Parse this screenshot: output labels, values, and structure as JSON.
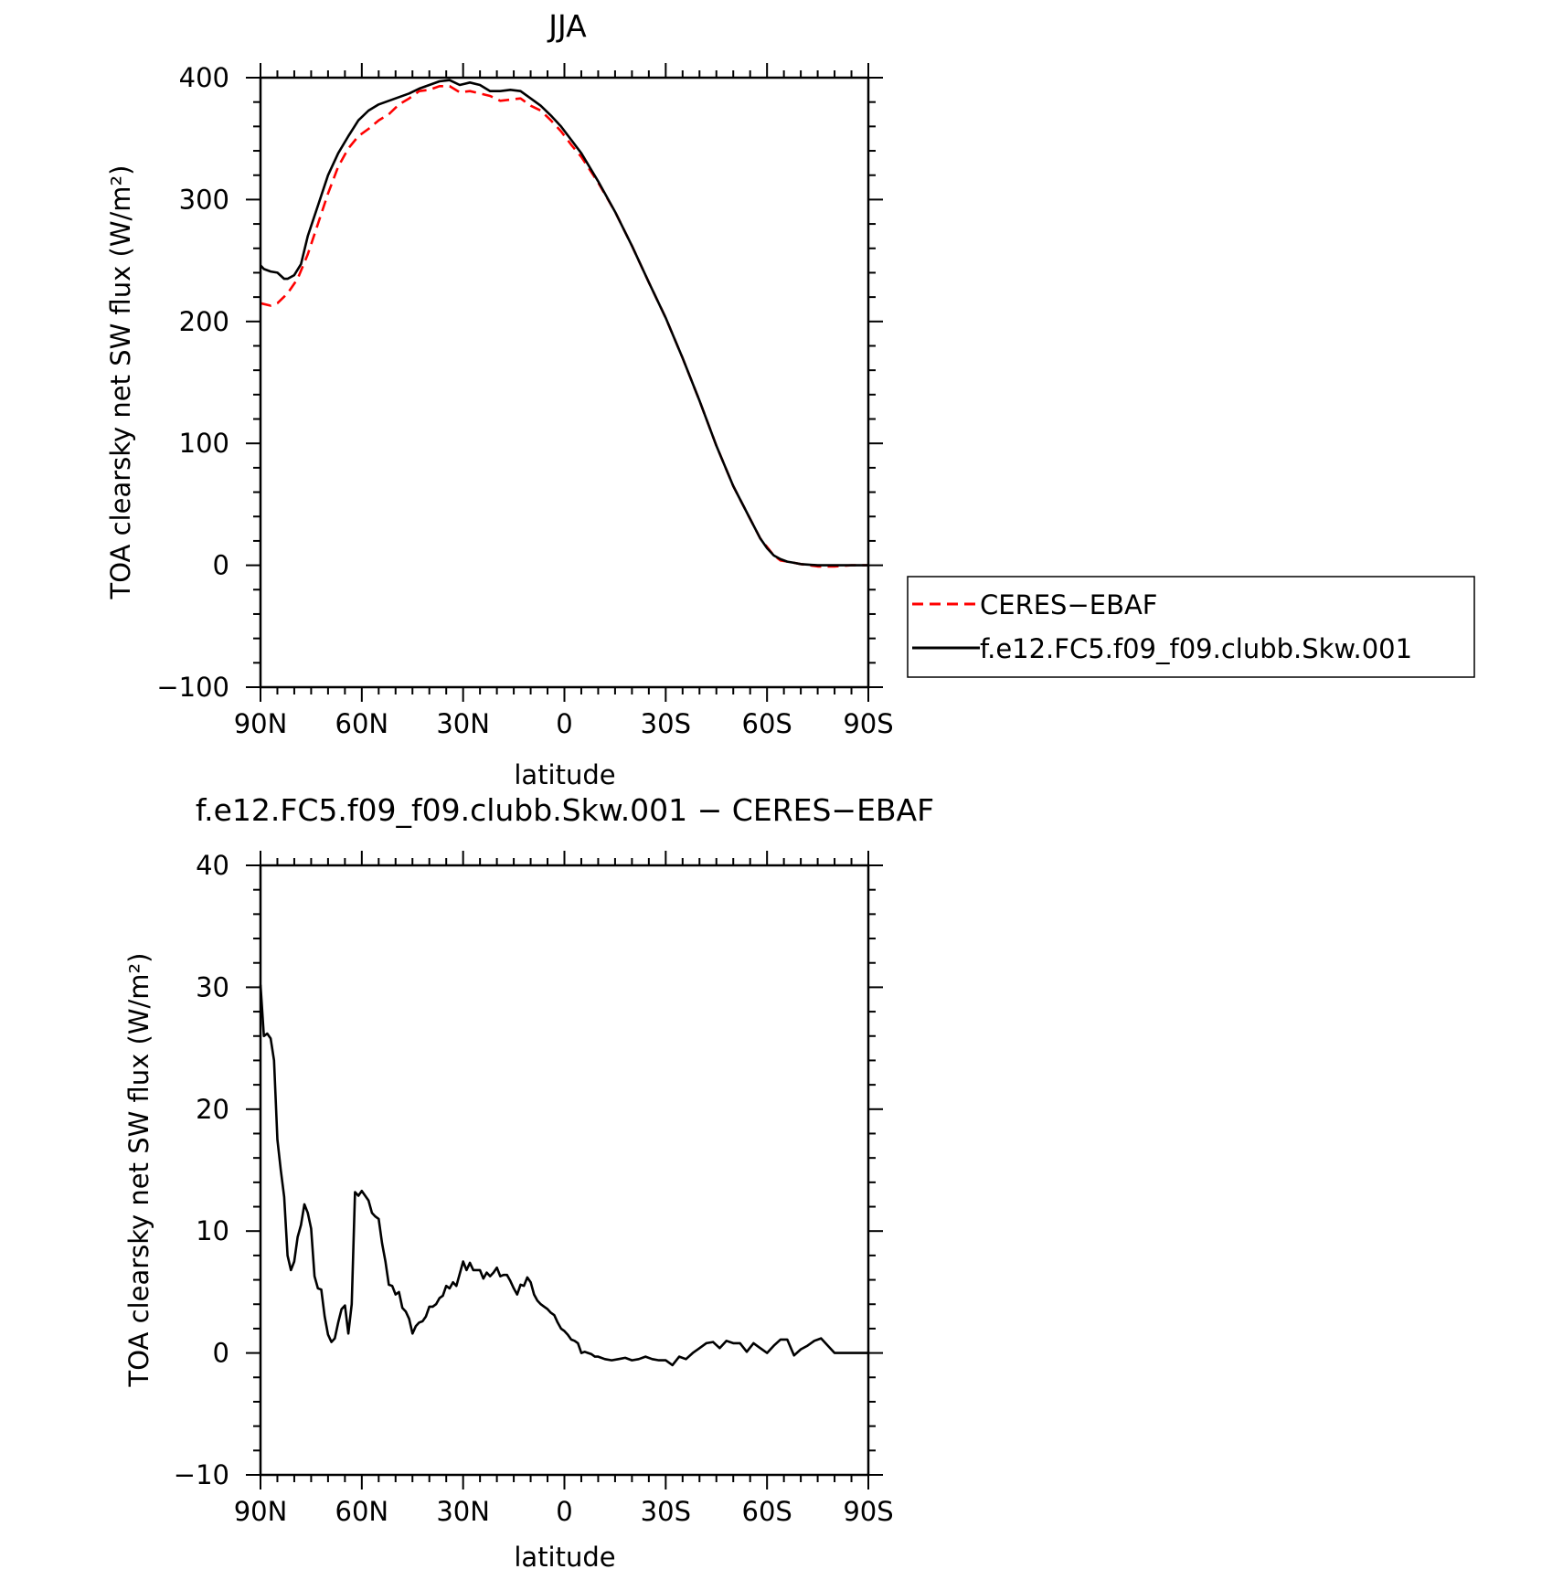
{
  "chart_data": [
    {
      "type": "line",
      "title": "JJA",
      "xlabel": "latitude",
      "ylabel": "TOA clearsky net SW flux (W/m²)",
      "xlim": [
        90,
        -90
      ],
      "ylim": [
        -100,
        400
      ],
      "xticks": [
        90,
        60,
        30,
        0,
        -30,
        -60,
        -90
      ],
      "xtick_labels": [
        "90N",
        "60N",
        "30N",
        "0",
        "30S",
        "60S",
        "90S"
      ],
      "yticks": [
        -100,
        0,
        100,
        200,
        300,
        400
      ],
      "ytick_labels": [
        "−100",
        "0",
        "100",
        "200",
        "300",
        "400"
      ],
      "legend_position": "right",
      "series": [
        {
          "name": "CERES−EBAF",
          "color": "#ff0000",
          "dash": "dashed",
          "x": [
            90,
            87,
            85,
            82,
            79,
            76,
            73,
            70,
            67,
            64,
            61,
            58,
            55,
            52,
            49,
            46,
            43,
            40,
            37,
            34,
            31,
            28,
            25,
            22,
            19,
            16,
            13,
            10,
            7,
            4,
            1,
            -2,
            -5,
            -10,
            -15,
            -20,
            -25,
            -30,
            -35,
            -40,
            -45,
            -50,
            -55,
            -58,
            -60,
            -62,
            -64,
            -66,
            -68,
            -70,
            -75,
            -80,
            -85,
            -90
          ],
          "y": [
            215,
            213,
            215,
            223,
            235,
            255,
            280,
            305,
            327,
            342,
            352,
            358,
            365,
            370,
            378,
            383,
            389,
            390,
            393,
            393,
            388,
            389,
            387,
            385,
            381,
            382,
            383,
            377,
            373,
            365,
            356,
            345,
            335,
            314,
            290,
            262,
            232,
            203,
            170,
            135,
            98,
            65,
            38,
            22,
            15,
            8,
            4,
            3,
            2,
            1,
            -1,
            -1,
            0,
            0
          ]
        },
        {
          "name": "f.e12.FC5.f09_f09.clubb.Skw.001",
          "color": "#000000",
          "dash": "solid",
          "x": [
            90,
            89,
            87,
            85,
            83,
            82,
            80,
            78,
            76,
            73,
            70,
            67,
            64,
            61,
            58,
            55,
            52,
            49,
            46,
            43,
            40,
            37,
            34,
            31,
            28,
            25,
            22,
            19,
            16,
            13,
            10,
            7,
            4,
            1,
            -2,
            -5,
            -10,
            -15,
            -20,
            -25,
            -30,
            -35,
            -40,
            -45,
            -50,
            -55,
            -58,
            -60,
            -62,
            -64,
            -66,
            -68,
            -70,
            -75,
            -80,
            -85,
            -90
          ],
          "y": [
            246,
            243,
            241,
            240,
            235,
            235,
            238,
            247,
            270,
            295,
            320,
            338,
            352,
            365,
            373,
            378,
            381,
            384,
            387,
            391,
            394,
            397,
            398,
            394,
            396,
            394,
            389,
            389,
            390,
            389,
            383,
            377,
            369,
            360,
            349,
            338,
            315,
            290,
            262,
            232,
            203,
            170,
            135,
            98,
            65,
            38,
            22,
            14,
            8,
            5,
            3,
            2,
            1,
            0,
            0,
            0,
            0
          ]
        }
      ]
    },
    {
      "type": "line",
      "title": "f.e12.FC5.f09_f09.clubb.Skw.001 − CERES−EBAF",
      "xlabel": "latitude",
      "ylabel": "TOA clearsky net SW flux (W/m²)",
      "xlim": [
        90,
        -90
      ],
      "ylim": [
        -10,
        40
      ],
      "xticks": [
        90,
        60,
        30,
        0,
        -30,
        -60,
        -90
      ],
      "xtick_labels": [
        "90N",
        "60N",
        "30N",
        "0",
        "30S",
        "60S",
        "90S"
      ],
      "yticks": [
        -10,
        0,
        10,
        20,
        30,
        40
      ],
      "ytick_labels": [
        "−10",
        "0",
        "10",
        "20",
        "30",
        "40"
      ],
      "series": [
        {
          "name": "",
          "color": "#000000",
          "dash": "solid",
          "x": [
            90,
            89,
            88,
            87,
            86,
            85,
            84,
            83,
            82,
            81,
            80,
            79,
            78,
            77,
            76,
            75,
            74,
            73,
            72,
            71,
            70,
            69,
            68,
            67,
            66,
            65,
            64,
            63,
            62,
            61,
            60,
            59,
            58,
            57,
            56,
            55,
            54,
            53,
            52,
            51,
            50,
            49,
            48,
            47,
            46,
            45,
            44,
            43,
            42,
            41,
            40,
            39,
            38,
            37,
            36,
            35,
            34,
            33,
            32,
            31,
            30,
            29,
            28,
            27,
            26,
            25,
            24,
            23,
            22,
            21,
            20,
            19,
            18,
            17,
            16,
            15,
            14,
            13,
            12,
            11,
            10,
            9,
            8,
            7,
            6,
            5,
            4,
            3,
            2,
            1,
            0,
            -1,
            -2,
            -3,
            -4,
            -5,
            -6,
            -7,
            -8,
            -9,
            -10,
            -12,
            -14,
            -16,
            -18,
            -20,
            -22,
            -24,
            -26,
            -28,
            -30,
            -32,
            -34,
            -36,
            -38,
            -40,
            -42,
            -44,
            -46,
            -48,
            -50,
            -52,
            -54,
            -56,
            -58,
            -60,
            -62,
            -64,
            -66,
            -68,
            -70,
            -72,
            -74,
            -76,
            -78,
            -80,
            -82,
            -84,
            -86,
            -88,
            -90
          ],
          "y": [
            30.2,
            26.0,
            26.2,
            25.8,
            24.0,
            17.5,
            15.0,
            12.8,
            8.0,
            6.8,
            7.5,
            9.5,
            10.5,
            12.2,
            11.5,
            10.2,
            6.3,
            5.3,
            5.2,
            3.0,
            1.5,
            0.9,
            1.2,
            2.5,
            3.6,
            3.9,
            1.6,
            4.0,
            13.2,
            12.9,
            13.3,
            12.9,
            12.5,
            11.5,
            11.2,
            11.0,
            9.0,
            7.5,
            5.6,
            5.5,
            4.8,
            5.0,
            3.7,
            3.4,
            2.8,
            1.6,
            2.2,
            2.5,
            2.6,
            3.0,
            3.8,
            3.8,
            4.0,
            4.5,
            4.7,
            5.5,
            5.3,
            5.8,
            5.5,
            6.5,
            7.5,
            6.8,
            7.4,
            6.8,
            6.8,
            6.8,
            6.1,
            6.6,
            6.3,
            6.6,
            7.0,
            6.3,
            6.4,
            6.4,
            5.9,
            5.3,
            4.8,
            5.6,
            5.5,
            6.2,
            5.8,
            4.8,
            4.3,
            4.0,
            3.8,
            3.6,
            3.3,
            3.1,
            2.5,
            2.0,
            1.8,
            1.5,
            1.1,
            1.0,
            0.8,
            0.0,
            0.1,
            0.0,
            -0.1,
            -0.3,
            -0.3,
            -0.5,
            -0.6,
            -0.5,
            -0.4,
            -0.6,
            -0.5,
            -0.3,
            -0.5,
            -0.6,
            -0.6,
            -1.0,
            -0.3,
            -0.5,
            0.0,
            0.4,
            0.8,
            0.9,
            0.4,
            1.0,
            0.8,
            0.8,
            0.1,
            0.8,
            0.4,
            0.0,
            0.6,
            1.1,
            1.1,
            -0.2,
            0.3,
            0.6,
            1.0,
            1.2,
            0.6,
            0.0,
            0.0,
            0.0,
            0.0,
            0.0,
            0.0
          ]
        }
      ]
    }
  ]
}
